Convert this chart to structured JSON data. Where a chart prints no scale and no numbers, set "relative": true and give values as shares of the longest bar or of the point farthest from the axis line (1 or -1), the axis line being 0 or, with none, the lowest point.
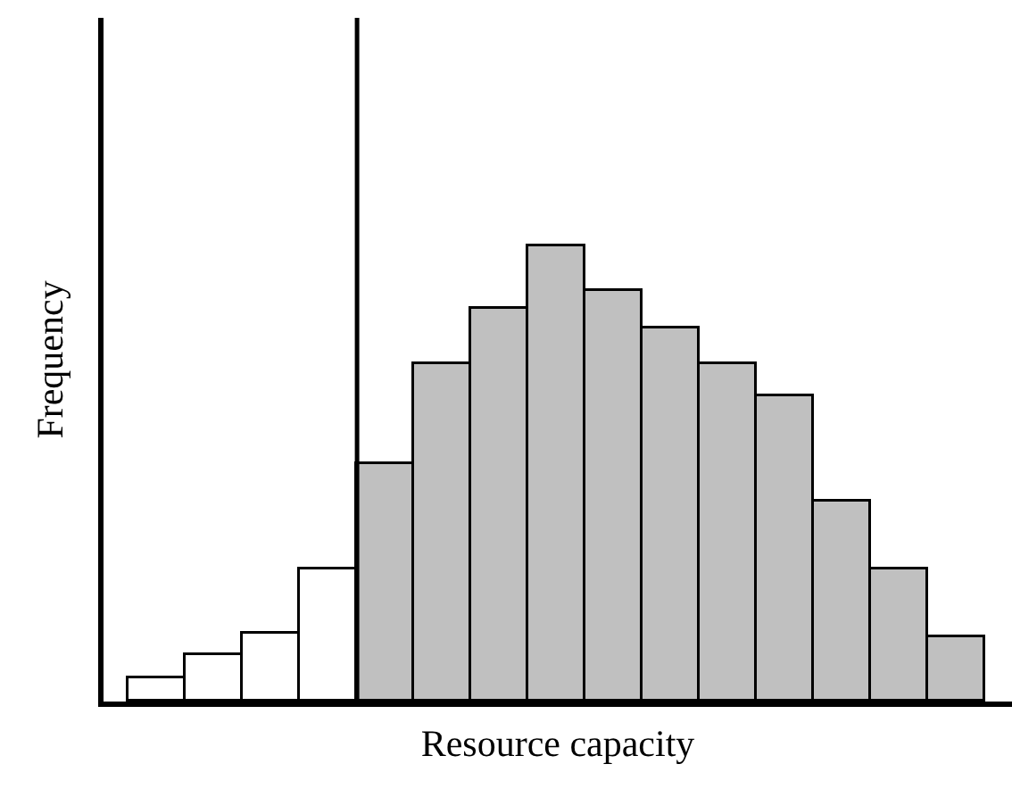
{
  "chart_data": {
    "type": "bar",
    "xlabel": "Resource capacity",
    "ylabel": "Frequency",
    "relative": true,
    "categories": [
      null,
      null,
      null,
      null,
      null,
      null,
      null,
      null,
      null,
      null,
      null,
      null,
      null,
      null,
      null
    ],
    "values": [
      0.05,
      0.1,
      0.15,
      0.29,
      0.52,
      0.74,
      0.86,
      1,
      0.9,
      0.82,
      0.74,
      0.67,
      0.44,
      0.29,
      0.14
    ],
    "colors": [
      "#ffffff",
      "#ffffff",
      "#ffffff",
      "#ffffff",
      "#c0c0c0",
      "#c0c0c0",
      "#c0c0c0",
      "#c0c0c0",
      "#c0c0c0",
      "#c0c0c0",
      "#c0c0c0",
      "#c0c0c0",
      "#c0c0c0",
      "#c0c0c0",
      "#c0c0c0"
    ],
    "grid": false,
    "legend": false
  }
}
